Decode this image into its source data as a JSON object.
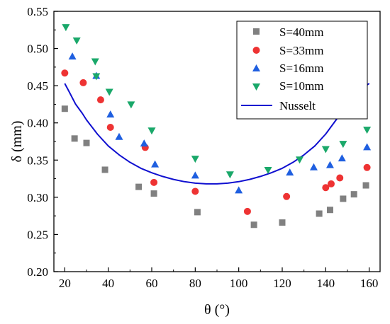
{
  "chart_data": {
    "type": "scatter",
    "title": "",
    "xlabel": "θ (°)",
    "ylabel": "δ (mm)",
    "xlim": [
      15,
      165
    ],
    "ylim": [
      0.2,
      0.55
    ],
    "xticks": [
      "20",
      "40",
      "60",
      "80",
      "100",
      "120",
      "140",
      "160"
    ],
    "yticks": [
      "0.20",
      "0.25",
      "0.30",
      "0.35",
      "0.40",
      "0.45",
      "0.50",
      "0.55"
    ],
    "grid": false,
    "legend_position": "top-right",
    "series": [
      {
        "name": "S=40mm",
        "marker": "square",
        "color": "#808080",
        "x": [
          20,
          24.5,
          30,
          38.5,
          54,
          61,
          81,
          107,
          120,
          137,
          142,
          148,
          153,
          158.5
        ],
        "y": [
          0.419,
          0.379,
          0.373,
          0.337,
          0.314,
          0.305,
          0.28,
          0.263,
          0.266,
          0.278,
          0.283,
          0.298,
          0.304,
          0.316
        ]
      },
      {
        "name": "S=33mm",
        "marker": "circle",
        "color": "#ee3333",
        "x": [
          20,
          28.5,
          36.5,
          41,
          57,
          61,
          80,
          104,
          122,
          140,
          142.5,
          146.5,
          159
        ],
        "y": [
          0.467,
          0.454,
          0.431,
          0.394,
          0.367,
          0.32,
          0.308,
          0.281,
          0.301,
          0.313,
          0.318,
          0.326,
          0.34
        ]
      },
      {
        "name": "S=16mm",
        "marker": "triangle-up",
        "color": "#1f5fe0",
        "x": [
          23.5,
          34.5,
          41,
          45,
          56.5,
          61.5,
          80,
          100,
          123.5,
          134.5,
          142,
          147.5,
          159
        ],
        "y": [
          0.489,
          0.463,
          0.411,
          0.381,
          0.372,
          0.344,
          0.329,
          0.309,
          0.333,
          0.34,
          0.343,
          0.352,
          0.367
        ]
      },
      {
        "name": "S=10mm",
        "marker": "triangle-down",
        "color": "#1aa86a",
        "x": [
          20.5,
          25.5,
          34,
          34.5,
          40.5,
          50.5,
          60,
          80,
          96,
          113.5,
          128,
          140,
          148,
          159
        ],
        "y": [
          0.529,
          0.511,
          0.483,
          0.463,
          0.442,
          0.425,
          0.39,
          0.352,
          0.331,
          0.337,
          0.351,
          0.365,
          0.372,
          0.391
        ]
      },
      {
        "name": "Nusselt",
        "marker": "line",
        "color": "#1010d0",
        "x": [
          20,
          22,
          25,
          28,
          30,
          35,
          40,
          45,
          50,
          55,
          60,
          65,
          70,
          75,
          80,
          85,
          90,
          95,
          100,
          105,
          110,
          115,
          120,
          125,
          130,
          135,
          140,
          145,
          150,
          155,
          158,
          160
        ],
        "y": [
          0.453,
          0.442,
          0.425,
          0.413,
          0.404,
          0.385,
          0.369,
          0.357,
          0.347,
          0.339,
          0.333,
          0.328,
          0.324,
          0.321,
          0.319,
          0.318,
          0.318,
          0.319,
          0.321,
          0.324,
          0.328,
          0.333,
          0.339,
          0.347,
          0.357,
          0.369,
          0.385,
          0.405,
          0.425,
          0.443,
          0.449,
          0.453
        ]
      }
    ]
  }
}
